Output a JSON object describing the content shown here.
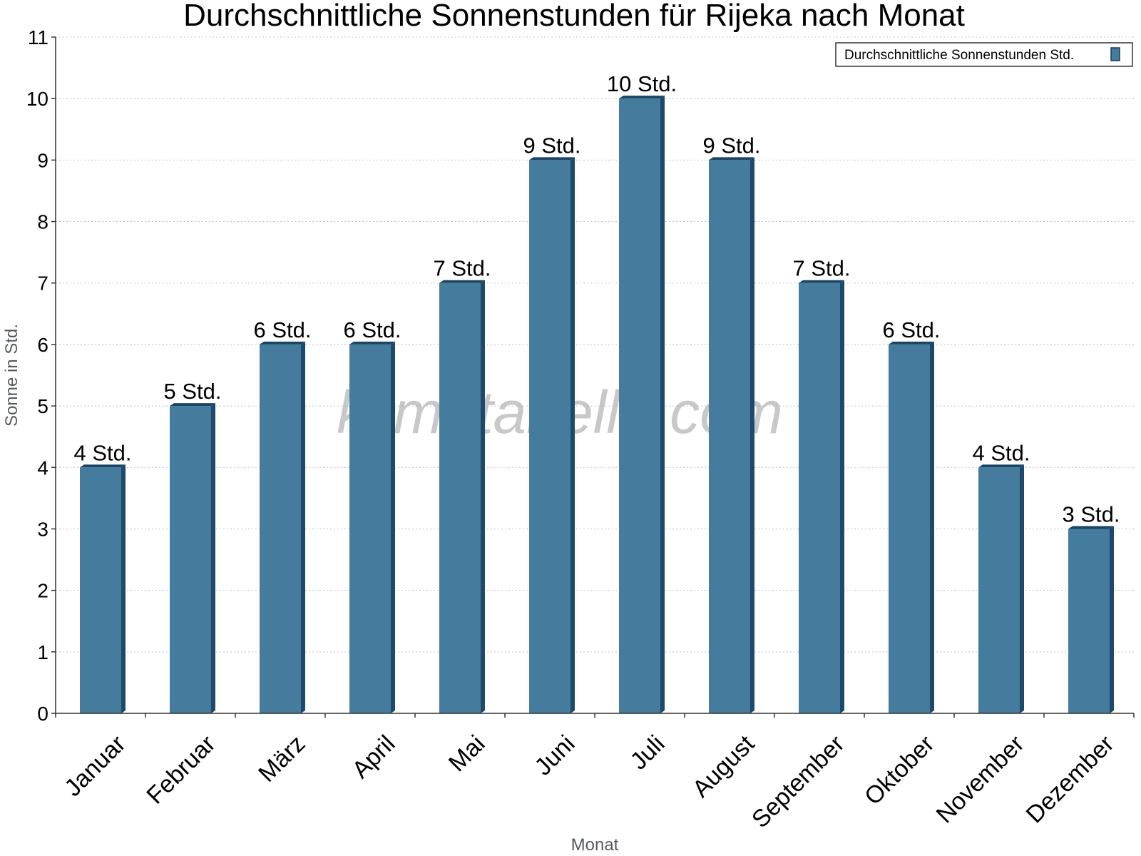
{
  "chart_data": {
    "type": "bar",
    "title": "Durchschnittliche Sonnenstunden für Rijeka nach Monat",
    "xlabel": "Monat",
    "ylabel": "Sonne in Std.",
    "ylim": [
      0,
      11
    ],
    "yticks": [
      0,
      1,
      2,
      3,
      4,
      5,
      6,
      7,
      8,
      9,
      10,
      11
    ],
    "grid": true,
    "legend_position": "top-right",
    "categories": [
      "Januar",
      "Februar",
      "März",
      "April",
      "Mai",
      "Juni",
      "Juli",
      "August",
      "September",
      "Oktober",
      "November",
      "Dezember"
    ],
    "series": [
      {
        "name": "Durchschnittliche Sonnenstunden Std.",
        "color": "#457b9d",
        "values": [
          4,
          5,
          6,
          6,
          7,
          9,
          10,
          9,
          7,
          6,
          4,
          3
        ],
        "labels": [
          "4 Std.",
          "5 Std.",
          "6 Std.",
          "6 Std.",
          "7 Std.",
          "9 Std.",
          "10 Std.",
          "9 Std.",
          "7 Std.",
          "6 Std.",
          "4 Std.",
          "3 Std."
        ]
      }
    ],
    "watermark": "klimatabelle.com"
  }
}
